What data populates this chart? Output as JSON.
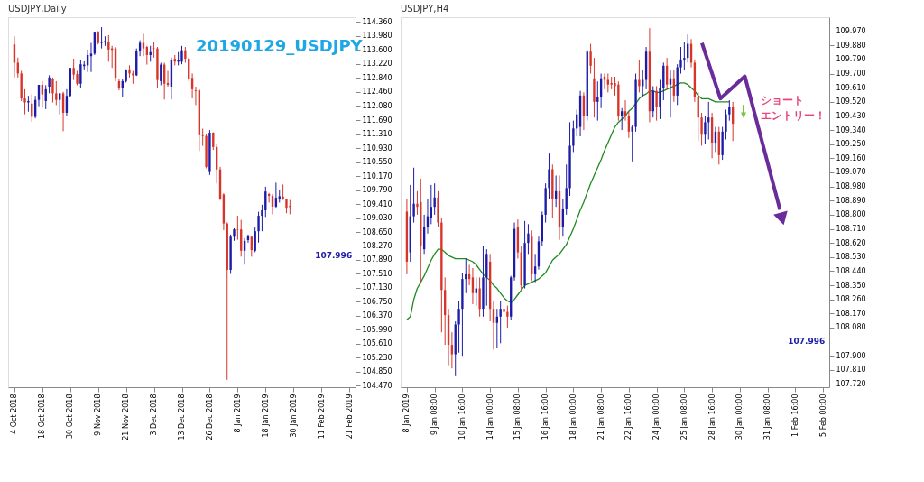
{
  "chart_data": [
    {
      "type": "candlestick",
      "title": "USDJPY,Daily",
      "categories": [
        "4 Oct 2018",
        null,
        null,
        null,
        null,
        null,
        null,
        null,
        "18 Oct 2018",
        null,
        null,
        null,
        null,
        null,
        null,
        null,
        "30 Oct 2018",
        null,
        null,
        null,
        null,
        null,
        null,
        null,
        "9 Nov 2018",
        null,
        null,
        null,
        null,
        null,
        null,
        null,
        "21 Nov 2018",
        null,
        null,
        null,
        null,
        null,
        null,
        null,
        "3 Dec 2018",
        null,
        null,
        null,
        null,
        null,
        null,
        null,
        "13 Dec 2018",
        null,
        null,
        null,
        null,
        null,
        null,
        null,
        "26 Dec 2018",
        null,
        null,
        null,
        null,
        null,
        null,
        null,
        "8 Jan 2019",
        null,
        null,
        null,
        null,
        null,
        null,
        null,
        "18 Jan 2019",
        null,
        null,
        null,
        null,
        null,
        null,
        null,
        "30 Jan 2019",
        null,
        null,
        null,
        null,
        null,
        null,
        null,
        "11 Feb 2019",
        null,
        null,
        null,
        null,
        null,
        null,
        null,
        "21 Feb 2019"
      ],
      "ohlc": [
        [
          113.75,
          113.97,
          112.85,
          113.25
        ],
        [
          113.25,
          113.39,
          112.85,
          112.96
        ],
        [
          112.96,
          113.03,
          112.21,
          112.28
        ],
        [
          112.28,
          112.53,
          111.85,
          112.17
        ],
        [
          112.17,
          112.35,
          111.92,
          112.21
        ],
        [
          112.14,
          112.39,
          111.64,
          111.78
        ],
        [
          111.78,
          112.35,
          111.74,
          112.24
        ],
        [
          112.24,
          112.65,
          112.07,
          112.65
        ],
        [
          112.65,
          112.75,
          112.03,
          112.39
        ],
        [
          112.21,
          112.64,
          111.99,
          112.53
        ],
        [
          112.6,
          112.91,
          112.42,
          112.85
        ],
        [
          112.82,
          112.85,
          112.17,
          112.42
        ],
        [
          112.42,
          112.75,
          112.1,
          112.24
        ],
        [
          112.24,
          112.42,
          111.85,
          112.42
        ],
        [
          112.42,
          112.46,
          111.39,
          111.89
        ],
        [
          111.89,
          112.53,
          111.81,
          112.35
        ],
        [
          112.35,
          113.11,
          112.32,
          113.11
        ],
        [
          113.11,
          113.36,
          112.78,
          112.93
        ],
        [
          112.94,
          113.03,
          112.64,
          112.68
        ],
        [
          112.68,
          113.32,
          112.57,
          113.21
        ],
        [
          113.16,
          113.29,
          113.07,
          113.2
        ],
        [
          113.18,
          113.61,
          113.0,
          113.46
        ],
        [
          113.43,
          113.79,
          113.0,
          113.5
        ],
        [
          113.5,
          114.07,
          113.46,
          114.07
        ],
        [
          114.07,
          114.11,
          113.75,
          113.79
        ],
        [
          113.79,
          114.22,
          113.64,
          113.82
        ],
        [
          113.82,
          113.97,
          113.71,
          113.84
        ],
        [
          113.82,
          114.0,
          113.28,
          113.61
        ],
        [
          113.64,
          113.71,
          113.11,
          113.6
        ],
        [
          113.64,
          113.68,
          112.75,
          112.85
        ],
        [
          112.75,
          112.82,
          112.5,
          112.57
        ],
        [
          112.57,
          112.82,
          112.32,
          112.75
        ],
        [
          112.75,
          113.07,
          112.71,
          113.07
        ],
        [
          113.07,
          113.18,
          112.85,
          112.96
        ],
        [
          112.96,
          113.03,
          112.68,
          112.91
        ],
        [
          112.91,
          113.64,
          112.89,
          113.57
        ],
        [
          113.57,
          113.86,
          113.43,
          113.79
        ],
        [
          113.79,
          114.04,
          113.43,
          113.64
        ],
        [
          113.68,
          113.71,
          113.2,
          113.46
        ],
        [
          113.46,
          113.71,
          113.28,
          113.54
        ],
        [
          113.64,
          113.82,
          113.39,
          113.63
        ],
        [
          113.64,
          113.68,
          112.57,
          112.78
        ],
        [
          112.75,
          113.25,
          112.64,
          113.2
        ],
        [
          113.2,
          113.25,
          112.25,
          112.68
        ],
        [
          112.7,
          113.03,
          112.6,
          112.65
        ],
        [
          112.6,
          113.39,
          112.25,
          113.32
        ],
        [
          113.36,
          113.46,
          113.18,
          113.28
        ],
        [
          113.28,
          113.54,
          113.18,
          113.32
        ],
        [
          113.28,
          113.71,
          113.21,
          113.59
        ],
        [
          113.59,
          113.68,
          113.25,
          113.36
        ],
        [
          113.36,
          113.39,
          112.75,
          112.82
        ],
        [
          112.84,
          112.96,
          112.28,
          112.53
        ],
        [
          112.5,
          112.6,
          112.1,
          112.48
        ],
        [
          112.5,
          112.53,
          110.85,
          111.28
        ],
        [
          111.28,
          111.46,
          110.99,
          111.26
        ],
        [
          111.26,
          111.31,
          110.38,
          110.42
        ],
        [
          110.28,
          111.42,
          110.2,
          111.35
        ],
        [
          111.35,
          111.36,
          110.88,
          110.96
        ],
        [
          110.96,
          111.03,
          109.97,
          110.35
        ],
        [
          110.35,
          110.42,
          109.52,
          109.54
        ],
        [
          109.67,
          109.7,
          108.7,
          108.88
        ],
        [
          108.88,
          108.91,
          104.63,
          107.62
        ],
        [
          107.62,
          108.58,
          107.51,
          108.52
        ],
        [
          108.52,
          108.75,
          108.41,
          108.72
        ],
        [
          108.71,
          109.09,
          108.44,
          108.7
        ],
        [
          108.72,
          108.98,
          107.98,
          108.14
        ],
        [
          108.14,
          108.48,
          107.76,
          108.41
        ],
        [
          108.43,
          108.58,
          108.36,
          108.55
        ],
        [
          108.52,
          108.53,
          107.98,
          108.16
        ],
        [
          108.14,
          108.77,
          108.1,
          108.67
        ],
        [
          108.67,
          109.2,
          108.36,
          109.09
        ],
        [
          109.09,
          109.39,
          108.67,
          109.24
        ],
        [
          109.24,
          109.88,
          109.06,
          109.75
        ],
        [
          109.68,
          109.71,
          109.45,
          109.63
        ],
        [
          109.63,
          109.68,
          109.13,
          109.34
        ],
        [
          109.34,
          109.99,
          109.31,
          109.58
        ],
        [
          109.54,
          109.78,
          109.45,
          109.62
        ],
        [
          109.61,
          109.94,
          109.52,
          109.54
        ],
        [
          109.54,
          109.56,
          109.16,
          109.31
        ],
        [
          109.36,
          109.52,
          109.13,
          109.33
        ],
        null,
        null,
        null,
        null,
        null,
        null,
        null,
        null,
        null,
        null,
        null,
        null,
        null,
        null,
        null,
        null,
        null
      ],
      "ylim": [
        104.43,
        114.49
      ],
      "yticks": [
        {
          "value": 114.36,
          "label": "114.360"
        },
        {
          "value": 113.98,
          "label": "113.980"
        },
        {
          "value": 113.6,
          "label": "113.600"
        },
        {
          "value": 113.22,
          "label": "113.220"
        },
        {
          "value": 112.84,
          "label": "112.840"
        },
        {
          "value": 112.46,
          "label": "112.460"
        },
        {
          "value": 112.08,
          "label": "112.080"
        },
        {
          "value": 111.69,
          "label": "111.690"
        },
        {
          "value": 111.31,
          "label": "111.310"
        },
        {
          "value": 110.93,
          "label": "110.930"
        },
        {
          "value": 110.55,
          "label": "110.550"
        },
        {
          "value": 110.17,
          "label": "110.170"
        },
        {
          "value": 109.79,
          "label": "109.790"
        },
        {
          "value": 109.41,
          "label": "109.410"
        },
        {
          "value": 109.03,
          "label": "109.030"
        },
        {
          "value": 108.65,
          "label": "108.650"
        },
        {
          "value": 108.27,
          "label": "108.270"
        },
        {
          "value": 107.89,
          "label": "107.890"
        },
        {
          "value": 107.51,
          "label": "107.510"
        },
        {
          "value": 107.13,
          "label": "107.130"
        },
        {
          "value": 106.75,
          "label": "106.750"
        },
        {
          "value": 106.37,
          "label": "106.370"
        },
        {
          "value": 105.99,
          "label": "105.990"
        },
        {
          "value": 105.61,
          "label": "105.610"
        },
        {
          "value": 105.23,
          "label": "105.230"
        },
        {
          "value": 104.85,
          "label": "104.850"
        },
        {
          "value": 104.47,
          "label": "104.470"
        }
      ],
      "annotations": [
        "20190129_USDJPY",
        "107.996"
      ]
    },
    {
      "type": "candlestick",
      "title": "USDJPY,H4",
      "categories": [
        "8 Jan 2019",
        null,
        null,
        null,
        null,
        null,
        null,
        null,
        "9 Jan 08:00",
        null,
        null,
        null,
        null,
        null,
        null,
        null,
        "10 Jan 16:00",
        null,
        null,
        null,
        null,
        null,
        null,
        null,
        "14 Jan 00:00",
        null,
        null,
        null,
        null,
        null,
        null,
        null,
        "15 Jan 08:00",
        null,
        null,
        null,
        null,
        null,
        null,
        null,
        "16 Jan 16:00",
        null,
        null,
        null,
        null,
        null,
        null,
        null,
        "18 Jan 00:00",
        null,
        null,
        null,
        null,
        null,
        null,
        null,
        "21 Jan 08:00",
        null,
        null,
        null,
        null,
        null,
        null,
        null,
        "22 Jan 16:00",
        null,
        null,
        null,
        null,
        null,
        null,
        null,
        "24 Jan 00:00",
        null,
        null,
        null,
        null,
        null,
        null,
        null,
        "25 Jan 08:00",
        null,
        null,
        null,
        null,
        null,
        null,
        null,
        "28 Jan 16:00",
        null,
        null,
        null,
        null,
        null,
        null,
        null,
        "30 Jan 00:00",
        null,
        null,
        null,
        null,
        null,
        null,
        null,
        "31 Jan 08:00",
        null,
        null,
        null,
        null,
        null,
        null,
        null,
        "1 Feb 16:00",
        null,
        null,
        null,
        null,
        null,
        null,
        null,
        "5 Feb 00:00"
      ],
      "ohlc": [
        [
          108.82,
          108.9,
          108.42,
          108.5
        ],
        [
          108.56,
          108.99,
          108.5,
          108.79
        ],
        [
          108.79,
          109.1,
          108.75,
          108.87
        ],
        [
          108.87,
          108.95,
          108.8,
          108.85
        ],
        [
          108.88,
          109.03,
          108.36,
          108.6
        ],
        [
          108.58,
          108.8,
          108.55,
          108.72
        ],
        [
          108.72,
          108.9,
          108.68,
          108.79
        ],
        [
          108.78,
          108.99,
          108.74,
          108.85
        ],
        [
          108.85,
          109.0,
          108.8,
          108.91
        ],
        [
          108.91,
          108.95,
          108.72,
          108.75
        ],
        [
          108.75,
          108.78,
          108.05,
          108.32
        ],
        [
          108.32,
          108.4,
          107.97,
          108.16
        ],
        [
          108.16,
          108.2,
          107.84,
          107.97
        ],
        [
          107.97,
          108.05,
          107.82,
          107.91
        ],
        [
          107.91,
          108.12,
          107.77,
          108.1
        ],
        [
          108.1,
          108.25,
          107.92,
          108.2
        ],
        [
          108.2,
          108.43,
          107.9,
          108.39
        ],
        [
          108.39,
          108.52,
          108.3,
          108.42
        ],
        [
          108.42,
          108.48,
          108.35,
          108.39
        ],
        [
          108.4,
          108.46,
          108.23,
          108.3
        ],
        [
          108.3,
          108.4,
          108.22,
          108.33
        ],
        [
          108.33,
          108.4,
          108.15,
          108.2
        ],
        [
          108.2,
          108.6,
          108.15,
          108.4
        ],
        [
          108.4,
          108.58,
          108.22,
          108.55
        ],
        [
          108.5,
          108.55,
          108.12,
          108.2
        ],
        [
          108.2,
          108.25,
          107.94,
          108.11
        ],
        [
          108.11,
          108.2,
          107.95,
          108.15
        ],
        [
          108.15,
          108.25,
          107.98,
          108.2
        ],
        [
          108.2,
          108.3,
          108.0,
          108.18
        ],
        [
          108.18,
          108.22,
          108.08,
          108.15
        ],
        [
          108.15,
          108.41,
          108.13,
          108.4
        ],
        [
          108.4,
          108.75,
          108.38,
          108.71
        ],
        [
          108.72,
          108.77,
          108.52,
          108.56
        ],
        [
          108.56,
          108.6,
          108.32,
          108.35
        ],
        [
          108.35,
          108.76,
          108.33,
          108.62
        ],
        [
          108.62,
          108.74,
          108.55,
          108.68
        ],
        [
          108.66,
          108.7,
          108.38,
          108.42
        ],
        [
          108.42,
          108.55,
          108.37,
          108.47
        ],
        [
          108.47,
          108.66,
          108.45,
          108.63
        ],
        [
          108.63,
          108.82,
          108.6,
          108.8
        ],
        [
          108.8,
          109.0,
          108.75,
          108.97
        ],
        [
          108.97,
          109.19,
          108.9,
          109.09
        ],
        [
          109.09,
          109.12,
          108.78,
          108.9
        ],
        [
          108.9,
          109.05,
          108.85,
          108.95
        ],
        [
          108.95,
          109.05,
          108.64,
          108.72
        ],
        [
          108.72,
          108.9,
          108.66,
          108.84
        ],
        [
          108.84,
          109.12,
          108.8,
          108.97
        ],
        [
          108.97,
          109.39,
          108.92,
          109.24
        ],
        [
          109.24,
          109.4,
          109.2,
          109.35
        ],
        [
          109.35,
          109.47,
          109.3,
          109.44
        ],
        [
          109.36,
          109.59,
          109.3,
          109.56
        ],
        [
          109.56,
          109.58,
          109.34,
          109.43
        ],
        [
          109.43,
          109.85,
          109.4,
          109.84
        ],
        [
          109.84,
          109.89,
          109.7,
          109.75
        ],
        [
          109.67,
          109.8,
          109.42,
          109.52
        ],
        [
          109.52,
          109.65,
          109.4,
          109.55
        ],
        [
          109.55,
          109.7,
          109.48,
          109.67
        ],
        [
          109.68,
          109.7,
          109.6,
          109.66
        ],
        [
          109.66,
          109.7,
          109.58,
          109.63
        ],
        [
          109.64,
          109.68,
          109.6,
          109.63
        ],
        [
          109.64,
          109.68,
          109.56,
          109.62
        ],
        [
          109.63,
          109.65,
          109.4,
          109.43
        ],
        [
          109.43,
          109.48,
          109.34,
          109.46
        ],
        [
          109.46,
          109.53,
          109.4,
          109.43
        ],
        [
          109.43,
          109.46,
          109.29,
          109.33
        ],
        [
          109.33,
          109.37,
          109.14,
          109.36
        ],
        [
          109.36,
          109.7,
          109.33,
          109.66
        ],
        [
          109.66,
          109.79,
          109.58,
          109.62
        ],
        [
          109.62,
          109.72,
          109.55,
          109.66
        ],
        [
          109.66,
          109.87,
          109.6,
          109.84
        ],
        [
          109.84,
          109.99,
          109.39,
          109.46
        ],
        [
          109.46,
          109.62,
          109.42,
          109.59
        ],
        [
          109.59,
          109.62,
          109.4,
          109.49
        ],
        [
          109.49,
          109.66,
          109.41,
          109.61
        ],
        [
          109.61,
          109.77,
          109.53,
          109.75
        ],
        [
          109.75,
          109.8,
          109.6,
          109.63
        ],
        [
          109.63,
          109.72,
          109.42,
          109.67
        ],
        [
          109.67,
          109.72,
          109.52,
          109.56
        ],
        [
          109.56,
          109.76,
          109.5,
          109.74
        ],
        [
          109.74,
          109.87,
          109.7,
          109.79
        ],
        [
          109.79,
          109.9,
          109.72,
          109.8
        ],
        [
          109.8,
          109.95,
          109.77,
          109.89
        ],
        [
          109.89,
          109.92,
          109.74,
          109.77
        ],
        [
          109.77,
          109.79,
          109.52,
          109.55
        ],
        [
          109.55,
          109.58,
          109.27,
          109.42
        ],
        [
          109.42,
          109.45,
          109.24,
          109.31
        ],
        [
          109.31,
          109.43,
          109.25,
          109.39
        ],
        [
          109.39,
          109.52,
          109.28,
          109.42
        ],
        [
          109.42,
          109.45,
          109.16,
          109.26
        ],
        [
          109.26,
          109.36,
          109.2,
          109.33
        ],
        [
          109.33,
          109.36,
          109.12,
          109.18
        ],
        [
          109.18,
          109.36,
          109.15,
          109.33
        ],
        [
          109.33,
          109.47,
          109.28,
          109.44
        ],
        [
          109.44,
          109.53,
          109.4,
          109.49
        ],
        [
          109.49,
          109.52,
          109.27,
          109.38
        ],
        null,
        null,
        null,
        null,
        null,
        null,
        null,
        null,
        null,
        null,
        null,
        null,
        null,
        null,
        null,
        null,
        null,
        null,
        null,
        null,
        null,
        null,
        null,
        null,
        null,
        null
      ],
      "series": [
        {
          "type": "line",
          "color": "#1f8a1f",
          "values": [
            108.13,
            108.15,
            108.26,
            108.33,
            108.37,
            108.41,
            108.46,
            108.51,
            108.55,
            108.58,
            108.58,
            108.56,
            108.54,
            108.53,
            108.52,
            108.52,
            108.52,
            108.52,
            108.51,
            108.5,
            108.48,
            108.45,
            108.42,
            108.4,
            108.38,
            108.35,
            108.33,
            108.3,
            108.27,
            108.25,
            108.24,
            108.26,
            108.29,
            108.32,
            108.35,
            108.36,
            108.37,
            108.38,
            108.39,
            108.41,
            108.43,
            108.47,
            108.51,
            108.53,
            108.55,
            108.58,
            108.61,
            108.66,
            108.71,
            108.77,
            108.83,
            108.88,
            108.94,
            109.0,
            109.05,
            109.1,
            109.15,
            109.21,
            109.26,
            109.31,
            109.36,
            109.39,
            109.41,
            109.43,
            109.46,
            109.48,
            109.51,
            109.54,
            109.56,
            109.57,
            109.59,
            109.59,
            109.58,
            109.58,
            109.59,
            109.6,
            109.61,
            109.62,
            109.63,
            109.64,
            109.64,
            109.63,
            109.61,
            109.59,
            109.56,
            109.54,
            109.54,
            109.54,
            109.53,
            109.52,
            109.52,
            109.52,
            109.52,
            109.52,
            null,
            null,
            null,
            null,
            null,
            null,
            null,
            null,
            null,
            null,
            null,
            null,
            null,
            null,
            null,
            null,
            null,
            null,
            null,
            null,
            null,
            null,
            null,
            null,
            null,
            null,
            null
          ]
        }
      ],
      "ylim": [
        107.7,
        110.06
      ],
      "yticks": [
        {
          "value": 109.97,
          "label": "109.970"
        },
        {
          "value": 109.88,
          "label": "109.880"
        },
        {
          "value": 109.79,
          "label": "109.790"
        },
        {
          "value": 109.7,
          "label": "109.700"
        },
        {
          "value": 109.61,
          "label": "109.610"
        },
        {
          "value": 109.52,
          "label": "109.520"
        },
        {
          "value": 109.43,
          "label": "109.430"
        },
        {
          "value": 109.34,
          "label": "109.340"
        },
        {
          "value": 109.25,
          "label": "109.250"
        },
        {
          "value": 109.16,
          "label": "109.160"
        },
        {
          "value": 109.07,
          "label": "109.070"
        },
        {
          "value": 108.98,
          "label": "108.980"
        },
        {
          "value": 108.89,
          "label": "108.890"
        },
        {
          "value": 108.8,
          "label": "108.800"
        },
        {
          "value": 108.71,
          "label": "108.710"
        },
        {
          "value": 108.62,
          "label": "108.620"
        },
        {
          "value": 108.53,
          "label": "108.530"
        },
        {
          "value": 108.44,
          "label": "108.440"
        },
        {
          "value": 108.35,
          "label": "108.350"
        },
        {
          "value": 108.26,
          "label": "108.260"
        },
        {
          "value": 108.17,
          "label": "108.170"
        },
        {
          "value": 108.08,
          "label": "108.080"
        },
        {
          "value": 107.9,
          "label": "107.900"
        },
        {
          "value": 107.81,
          "label": "107.810"
        },
        {
          "value": 107.72,
          "label": "107.720"
        }
      ],
      "annotations": [
        "ショート",
        "エントリー！",
        "107.996"
      ]
    }
  ]
}
